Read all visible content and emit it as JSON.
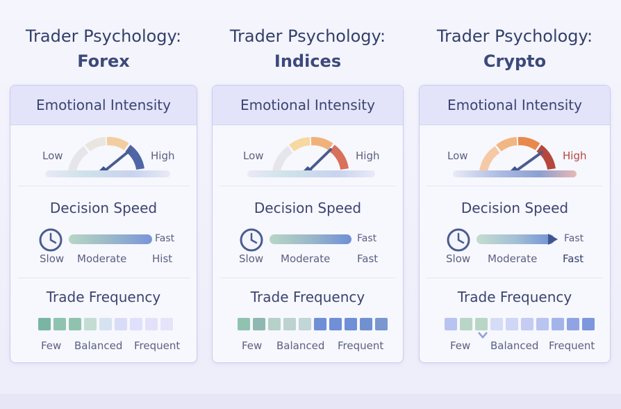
{
  "columns": [
    {
      "title": "Trader Psychology:",
      "market": "Forex",
      "emotional": {
        "header": "Emotional Intensity",
        "low": "Low",
        "high": "High",
        "level": 0.78
      },
      "speed": {
        "title": "Decision Speed",
        "left": "Slow",
        "mid": "Moderate",
        "right": "Hist",
        "end": "Fast"
      },
      "frequency": {
        "title": "Trade Frequency",
        "few": "Few",
        "balanced": "Balanced",
        "frequent": "Frequent"
      }
    },
    {
      "title": "Trader Psychology:",
      "market": "Indices",
      "emotional": {
        "header": "Emotional Intensity",
        "low": "Low",
        "high": "High",
        "level": 0.72
      },
      "speed": {
        "title": "Decision Speed",
        "left": "Slow",
        "mid": "Moderate",
        "right": "Fast",
        "end": "Fast"
      },
      "frequency": {
        "title": "Trade Frequency",
        "few": "Few",
        "balanced": "Balanced",
        "frequent": "Frequent"
      }
    },
    {
      "title": "Trader Psychology:",
      "market": "Crypto",
      "emotional": {
        "header": "Emotional Intensity",
        "low": "Low",
        "high": "High",
        "level": 0.82
      },
      "speed": {
        "title": "Decision Speed",
        "left": "Slow",
        "mid": "Moderate",
        "right": "Fast",
        "end": "Fast"
      },
      "frequency": {
        "title": "Trade Frequency",
        "few": "Few",
        "balanced": "Balanced",
        "frequent": "Frequent"
      }
    }
  ],
  "colors": {
    "title": "#33406a",
    "green": "#8fc3b0",
    "blue": "#6f8fd6",
    "lavender": "#dfe0fb",
    "orange": "#f0a36d",
    "red": "#b5473c"
  }
}
